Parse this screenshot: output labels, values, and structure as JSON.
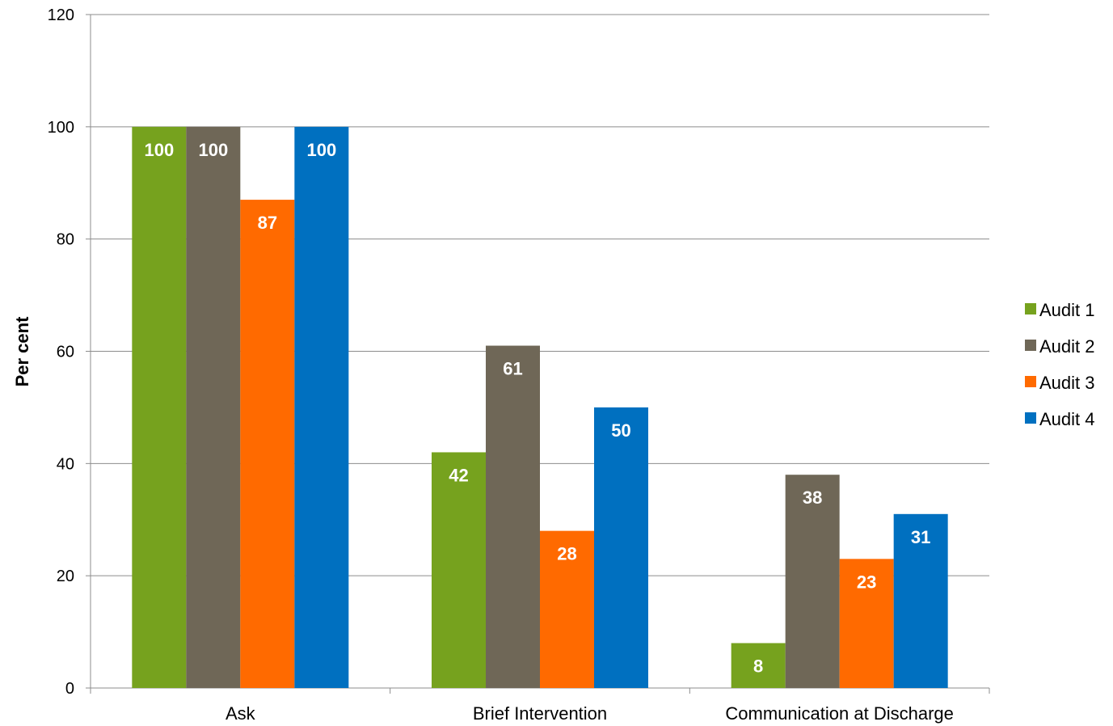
{
  "chart_data": {
    "type": "bar",
    "title": "",
    "xlabel": "",
    "ylabel": "Per cent",
    "ylim": [
      0,
      120
    ],
    "yticks": [
      0,
      20,
      40,
      60,
      80,
      100,
      120
    ],
    "grid": true,
    "legend_position": "right",
    "categories": [
      "Ask",
      "Brief Intervention",
      "Communication at Discharge"
    ],
    "series": [
      {
        "name": "Audit 1",
        "color": "#76A21E",
        "values": [
          100,
          42,
          8
        ]
      },
      {
        "name": "Audit 2",
        "color": "#6F6757",
        "values": [
          100,
          61,
          38
        ]
      },
      {
        "name": "Audit 3",
        "color": "#FF6A00",
        "values": [
          87,
          28,
          23
        ]
      },
      {
        "name": "Audit 4",
        "color": "#0070C0",
        "values": [
          100,
          50,
          31
        ]
      }
    ]
  }
}
